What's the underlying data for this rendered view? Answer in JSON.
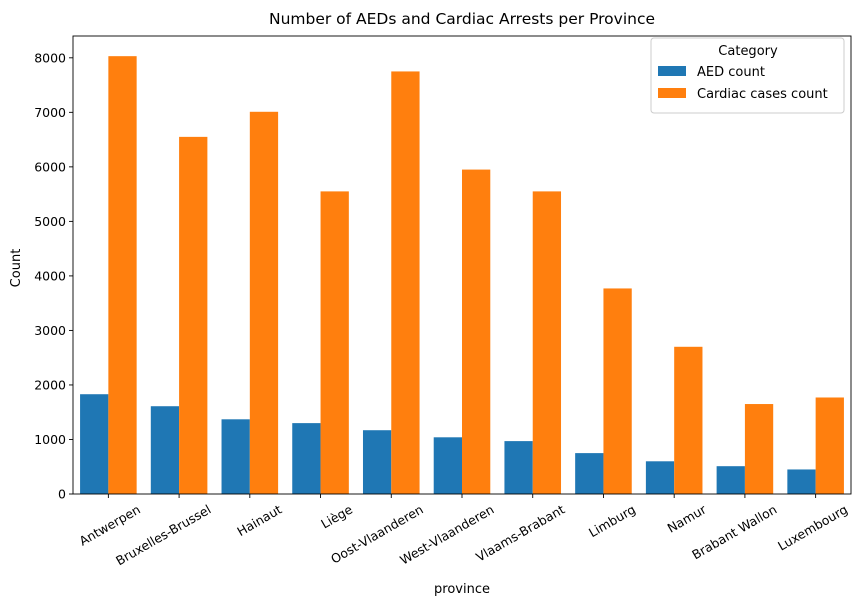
{
  "chart_data": {
    "type": "bar",
    "title": "Number of AEDs and Cardiac Arrests per Province",
    "xlabel": "province",
    "ylabel": "Count",
    "ylim": [
      0,
      8400
    ],
    "yticks": [
      0,
      1000,
      2000,
      3000,
      4000,
      5000,
      6000,
      7000,
      8000
    ],
    "categories": [
      "Antwerpen",
      "Bruxelles-Brussel",
      "Hainaut",
      "Liège",
      "Oost-Vlaanderen",
      "West-Vlaanderen",
      "Vlaams-Brabant",
      "Limburg",
      "Namur",
      "Brabant Wallon",
      "Luxembourg"
    ],
    "series": [
      {
        "name": "AED count",
        "color": "#1f77b4",
        "values": [
          1830,
          1610,
          1370,
          1300,
          1170,
          1040,
          970,
          750,
          600,
          510,
          450
        ]
      },
      {
        "name": "Cardiac cases count",
        "color": "#ff7f0e",
        "values": [
          8030,
          6550,
          7010,
          5550,
          7750,
          5950,
          5550,
          3770,
          2700,
          1650,
          1770
        ]
      }
    ],
    "legend": {
      "title": "Category",
      "position": "top-right"
    },
    "grid": false
  }
}
